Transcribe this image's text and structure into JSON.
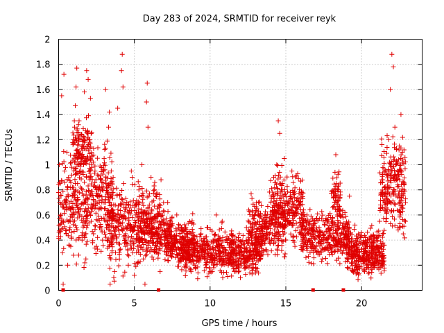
{
  "chart_data": {
    "type": "scatter",
    "title": "Day 283 of 2024, SRMTID for receiver reyk",
    "xlabel": "GPS time / hours",
    "ylabel": "SRMTID / TECUs",
    "xlim": [
      0,
      24
    ],
    "ylim": [
      0,
      2
    ],
    "xticks": [
      "0",
      "5",
      "10",
      "15",
      "20"
    ],
    "yticks": [
      "0",
      "0.2",
      "0.4",
      "0.6",
      "0.8",
      "1",
      "1.2",
      "1.4",
      "1.6",
      "1.8",
      "2"
    ],
    "grid": true,
    "series": [
      {
        "name": "SRMTID",
        "color": "#e00000",
        "marker": "plus",
        "points": [
          [
            0.05,
            1.0
          ],
          [
            0.1,
            0.85
          ],
          [
            0.15,
            0.6
          ],
          [
            0.2,
            1.55
          ],
          [
            0.25,
            0.3
          ],
          [
            0.3,
            0.05
          ],
          [
            0.35,
            1.72
          ],
          [
            0.4,
            0.95
          ],
          [
            0.45,
            0.7
          ],
          [
            0.5,
            0.45
          ],
          [
            0.55,
            1.1
          ],
          [
            0.6,
            0.2
          ],
          [
            0.65,
            0.9
          ],
          [
            0.7,
            0.65
          ],
          [
            0.75,
            0.5
          ],
          [
            0.8,
            0.35
          ],
          [
            0.85,
            0.98
          ],
          [
            0.9,
            0.75
          ],
          [
            0.95,
            0.55
          ],
          [
            1.0,
            1.2
          ],
          [
            1.05,
            1.3
          ],
          [
            1.1,
            1.47
          ],
          [
            1.15,
            1.62
          ],
          [
            1.2,
            1.77
          ],
          [
            1.25,
            0.85
          ],
          [
            1.3,
            1.1
          ],
          [
            1.35,
            1.35
          ],
          [
            1.4,
            0.6
          ],
          [
            1.45,
            0.95
          ],
          [
            1.5,
            1.05
          ],
          [
            1.55,
            0.4
          ],
          [
            1.6,
            0.8
          ],
          [
            1.65,
            1.0
          ],
          [
            1.7,
            1.58
          ],
          [
            1.75,
            0.7
          ],
          [
            1.8,
            0.25
          ],
          [
            1.85,
            1.75
          ],
          [
            1.9,
            0.6
          ],
          [
            1.95,
            1.68
          ],
          [
            2.0,
            0.9
          ],
          [
            2.05,
            1.2
          ],
          [
            2.1,
            1.53
          ],
          [
            2.15,
            0.55
          ],
          [
            2.2,
            0.75
          ],
          [
            2.3,
            0.45
          ],
          [
            2.4,
            0.95
          ],
          [
            2.5,
            0.35
          ],
          [
            2.6,
            0.8
          ],
          [
            2.7,
            0.5
          ],
          [
            2.8,
            0.65
          ],
          [
            2.9,
            0.4
          ],
          [
            3.0,
            0.7
          ],
          [
            3.1,
            1.6
          ],
          [
            3.2,
            0.6
          ],
          [
            3.3,
            1.3
          ],
          [
            3.35,
            1.42
          ],
          [
            3.4,
            0.05
          ],
          [
            3.45,
            0.25
          ],
          [
            3.5,
            0.45
          ],
          [
            3.6,
            0.9
          ],
          [
            3.7,
            0.15
          ],
          [
            3.8,
            0.55
          ],
          [
            3.9,
            1.45
          ],
          [
            4.0,
            0.3
          ],
          [
            4.1,
            0.6
          ],
          [
            4.15,
            1.75
          ],
          [
            4.2,
            1.88
          ],
          [
            4.25,
            1.62
          ],
          [
            4.3,
            0.85
          ],
          [
            4.4,
            0.4
          ],
          [
            4.5,
            0.7
          ],
          [
            4.6,
            0.2
          ],
          [
            4.7,
            0.5
          ],
          [
            4.8,
            0.95
          ],
          [
            4.9,
            0.3
          ],
          [
            5.0,
            0.12
          ],
          [
            5.1,
            0.6
          ],
          [
            5.2,
            0.35
          ],
          [
            5.3,
            0.8
          ],
          [
            5.4,
            0.5
          ],
          [
            5.5,
            1.0
          ],
          [
            5.6,
            0.25
          ],
          [
            5.7,
            0.05
          ],
          [
            5.8,
            1.5
          ],
          [
            5.85,
            1.65
          ],
          [
            5.9,
            1.3
          ],
          [
            6.0,
            0.55
          ],
          [
            6.1,
            0.9
          ],
          [
            6.2,
            0.45
          ],
          [
            6.4,
            0.75
          ],
          [
            6.5,
            0.3
          ],
          [
            6.6,
            0.6
          ],
          [
            6.7,
            0.15
          ],
          [
            6.8,
            0.5
          ],
          [
            7.0,
            0.4
          ],
          [
            7.2,
            0.7
          ],
          [
            7.4,
            0.55
          ],
          [
            7.6,
            0.35
          ],
          [
            7.8,
            0.6
          ],
          [
            8.0,
            0.45
          ],
          [
            8.2,
            0.3
          ],
          [
            8.4,
            0.5
          ],
          [
            8.6,
            0.25
          ],
          [
            8.8,
            0.4
          ],
          [
            9.0,
            0.2
          ],
          [
            9.2,
            0.35
          ],
          [
            9.4,
            0.45
          ],
          [
            9.6,
            0.3
          ],
          [
            9.8,
            0.5
          ],
          [
            10.0,
            0.15
          ],
          [
            10.2,
            0.4
          ],
          [
            10.4,
            0.6
          ],
          [
            10.6,
            0.25
          ],
          [
            10.8,
            0.55
          ],
          [
            11.0,
            0.3
          ],
          [
            11.2,
            0.2
          ],
          [
            11.4,
            0.45
          ],
          [
            11.6,
            0.15
          ],
          [
            11.8,
            0.35
          ],
          [
            12.0,
            0.1
          ],
          [
            12.2,
            0.3
          ],
          [
            12.4,
            0.5
          ],
          [
            12.6,
            0.25
          ],
          [
            12.8,
            0.6
          ],
          [
            13.0,
            0.4
          ],
          [
            13.2,
            0.7
          ],
          [
            13.4,
            0.3
          ],
          [
            13.6,
            0.5
          ],
          [
            13.8,
            0.45
          ],
          [
            14.0,
            0.6
          ],
          [
            14.2,
            0.9
          ],
          [
            14.4,
            1.0
          ],
          [
            14.5,
            1.35
          ],
          [
            14.6,
            1.25
          ],
          [
            14.7,
            0.8
          ],
          [
            14.8,
            0.6
          ],
          [
            14.9,
            1.05
          ],
          [
            15.0,
            0.4
          ],
          [
            15.2,
            0.55
          ],
          [
            15.4,
            0.95
          ],
          [
            15.6,
            0.35
          ],
          [
            15.8,
            0.5
          ],
          [
            16.0,
            0.45
          ],
          [
            16.2,
            0.4
          ],
          [
            16.4,
            0.6
          ],
          [
            16.6,
            0.3
          ],
          [
            16.8,
            0.45
          ],
          [
            17.0,
            0.35
          ],
          [
            17.2,
            0.5
          ],
          [
            17.4,
            0.25
          ],
          [
            17.6,
            0.4
          ],
          [
            17.8,
            0.55
          ],
          [
            18.0,
            0.3
          ],
          [
            18.2,
            0.8
          ],
          [
            18.3,
            1.08
          ],
          [
            18.4,
            0.6
          ],
          [
            18.6,
            0.35
          ],
          [
            18.8,
            0.5
          ],
          [
            19.0,
            0.4
          ],
          [
            19.2,
            0.75
          ],
          [
            19.4,
            0.3
          ],
          [
            19.6,
            0.2
          ],
          [
            19.8,
            0.45
          ],
          [
            20.0,
            0.25
          ],
          [
            20.2,
            0.15
          ],
          [
            20.4,
            0.35
          ],
          [
            20.6,
            0.2
          ],
          [
            20.8,
            0.4
          ],
          [
            21.0,
            0.3
          ],
          [
            21.2,
            0.55
          ],
          [
            21.4,
            0.45
          ],
          [
            21.6,
            0.8
          ],
          [
            21.8,
            1.2
          ],
          [
            21.9,
            1.6
          ],
          [
            22.0,
            1.88
          ],
          [
            22.1,
            1.78
          ],
          [
            22.2,
            1.3
          ],
          [
            22.3,
            0.9
          ],
          [
            22.4,
            0.5
          ],
          [
            22.5,
            1.15
          ],
          [
            22.6,
            1.4
          ],
          [
            22.7,
            1.1
          ],
          [
            22.8,
            0.8
          ],
          [
            22.9,
            0.55
          ]
        ],
        "density": [
          {
            "x": [
              0.0,
              3.6
            ],
            "y": [
              0.1,
              1.3
            ],
            "count": 420
          },
          {
            "x": [
              0.9,
              2.2
            ],
            "y": [
              0.8,
              1.45
            ],
            "count": 120
          },
          {
            "x": [
              3.3,
              6.8
            ],
            "y": [
              0.05,
              1.0
            ],
            "count": 380
          },
          {
            "x": [
              5.2,
              7.5
            ],
            "y": [
              0.2,
              0.75
            ],
            "count": 160
          },
          {
            "x": [
              7.0,
              9.0
            ],
            "y": [
              0.1,
              0.65
            ],
            "count": 220
          },
          {
            "x": [
              8.0,
              13.5
            ],
            "y": [
              0.05,
              0.55
            ],
            "count": 640
          },
          {
            "x": [
              12.5,
              15.0
            ],
            "y": [
              0.15,
              0.85
            ],
            "count": 260
          },
          {
            "x": [
              14.0,
              16.2
            ],
            "y": [
              0.3,
              1.05
            ],
            "count": 240
          },
          {
            "x": [
              16.0,
              19.2
            ],
            "y": [
              0.15,
              0.7
            ],
            "count": 380
          },
          {
            "x": [
              18.0,
              18.6
            ],
            "y": [
              0.5,
              1.0
            ],
            "count": 60
          },
          {
            "x": [
              19.0,
              21.5
            ],
            "y": [
              0.05,
              0.55
            ],
            "count": 380
          },
          {
            "x": [
              21.2,
              22.9
            ],
            "y": [
              0.3,
              1.35
            ],
            "count": 230
          }
        ]
      }
    ],
    "baseline_markers": [
      0.3,
      6.6,
      16.8,
      18.8
    ]
  }
}
